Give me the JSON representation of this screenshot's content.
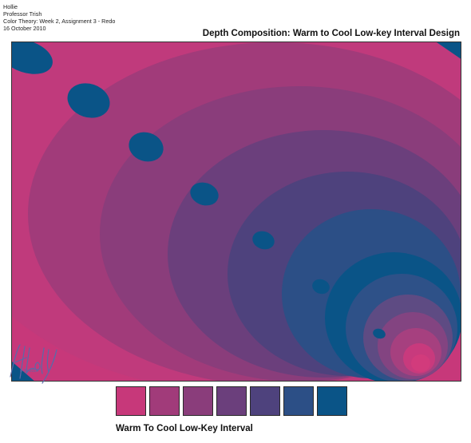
{
  "header": {
    "name": "Hollie",
    "instructor": "Professor Trish",
    "course": "Color Theory: Week 2, Assignment 3 - Redo",
    "date": "16 October 2010"
  },
  "design_title": "Depth Composition: Warm to Cool Low-key Interval Design",
  "palette": {
    "caption": "Warm To Cool Low-Key Interval",
    "colors": [
      "#c7387a",
      "#a13b7a",
      "#8a3d7b",
      "#6b3f7c",
      "#4e427d",
      "#2c4f86",
      "#0a5487"
    ]
  },
  "artwork": {
    "background": "#c7387a",
    "ring_colors": [
      "#c03a7c",
      "#a13b7a",
      "#8a3d7b",
      "#6b3f7c",
      "#4e427d",
      "#2c4f86",
      "#0a5487",
      "#2e5188",
      "#5e4b83",
      "#834481",
      "#a6407f",
      "#c83a7d",
      "#d23b7c"
    ],
    "dot_color": "#0a5487"
  },
  "signature": {
    "text": "Hollie",
    "sub": "8-25-2010"
  }
}
